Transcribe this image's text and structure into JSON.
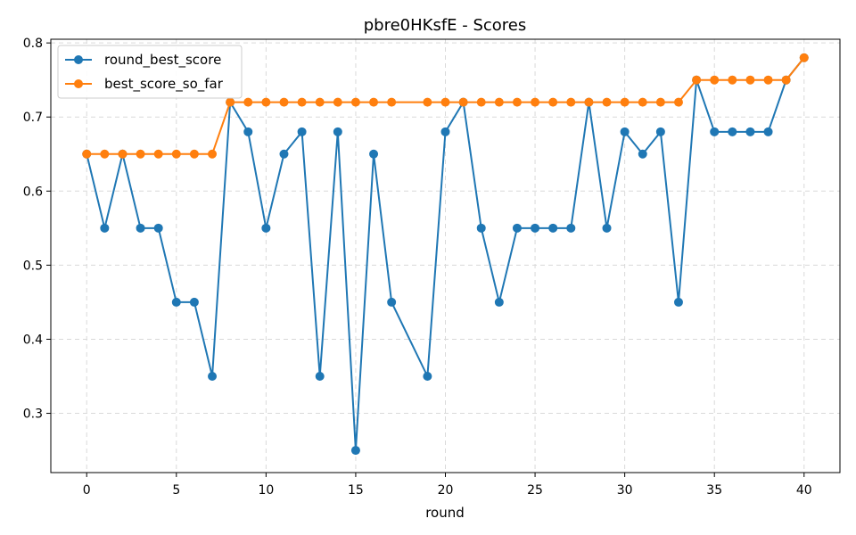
{
  "chart_data": {
    "type": "line",
    "title": "pbre0HKsfE - Scores",
    "xlabel": "round",
    "ylabel": "",
    "xlim": [
      -2,
      42
    ],
    "ylim": [
      0.22,
      0.805
    ],
    "x_ticks": [
      0,
      5,
      10,
      15,
      20,
      25,
      30,
      35,
      40
    ],
    "y_ticks": [
      0.3,
      0.4,
      0.5,
      0.6,
      0.7,
      0.8
    ],
    "grid": true,
    "legend_position": "top-left",
    "series": [
      {
        "name": "round_best_score",
        "color": "#1f77b4",
        "x": [
          0,
          1,
          2,
          3,
          4,
          5,
          6,
          7,
          8,
          9,
          10,
          11,
          12,
          13,
          14,
          15,
          16,
          17,
          19,
          20,
          21,
          22,
          23,
          24,
          25,
          26,
          27,
          28,
          29,
          30,
          31,
          32,
          33,
          34,
          35,
          36,
          37,
          38,
          39,
          40
        ],
        "values": [
          0.65,
          0.55,
          0.65,
          0.55,
          0.55,
          0.45,
          0.45,
          0.35,
          0.72,
          0.68,
          0.55,
          0.65,
          0.68,
          0.35,
          0.68,
          0.25,
          0.65,
          0.45,
          0.35,
          0.68,
          0.72,
          0.55,
          0.45,
          0.55,
          0.55,
          0.55,
          0.55,
          0.72,
          0.55,
          0.68,
          0.65,
          0.68,
          0.45,
          0.75,
          0.68,
          0.68,
          0.68,
          0.68,
          0.75,
          0.78
        ]
      },
      {
        "name": "best_score_so_far",
        "color": "#ff7f0e",
        "x": [
          0,
          1,
          2,
          3,
          4,
          5,
          6,
          7,
          8,
          9,
          10,
          11,
          12,
          13,
          14,
          15,
          16,
          17,
          19,
          20,
          21,
          22,
          23,
          24,
          25,
          26,
          27,
          28,
          29,
          30,
          31,
          32,
          33,
          34,
          35,
          36,
          37,
          38,
          39,
          40
        ],
        "values": [
          0.65,
          0.65,
          0.65,
          0.65,
          0.65,
          0.65,
          0.65,
          0.65,
          0.72,
          0.72,
          0.72,
          0.72,
          0.72,
          0.72,
          0.72,
          0.72,
          0.72,
          0.72,
          0.72,
          0.72,
          0.72,
          0.72,
          0.72,
          0.72,
          0.72,
          0.72,
          0.72,
          0.72,
          0.72,
          0.72,
          0.72,
          0.72,
          0.72,
          0.75,
          0.75,
          0.75,
          0.75,
          0.75,
          0.75,
          0.78
        ]
      }
    ]
  }
}
